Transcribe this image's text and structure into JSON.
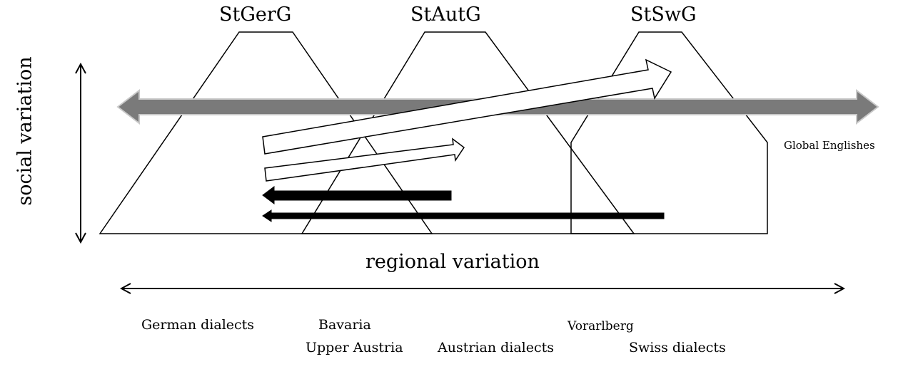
{
  "varieties": {
    "german": "StGerG",
    "austrian": "StAutG",
    "swiss": "StSwG"
  },
  "axes": {
    "social": "social variation",
    "regional": "regional variation"
  },
  "global_label": "Global Englishes",
  "regions": {
    "german_dialects": "German dialects",
    "bavaria": "Bavaria",
    "upper_austria": "Upper Austria",
    "austrian_dialects": "Austrian dialects",
    "vorarlberg": "Vorarlberg",
    "swiss_dialects": "Swiss dialects"
  },
  "colors": {
    "line": "#000000",
    "global_arrow": "#7a7a7a",
    "flow_arrow_fill": "#ffffff",
    "reverse_arrow": "#000000"
  }
}
